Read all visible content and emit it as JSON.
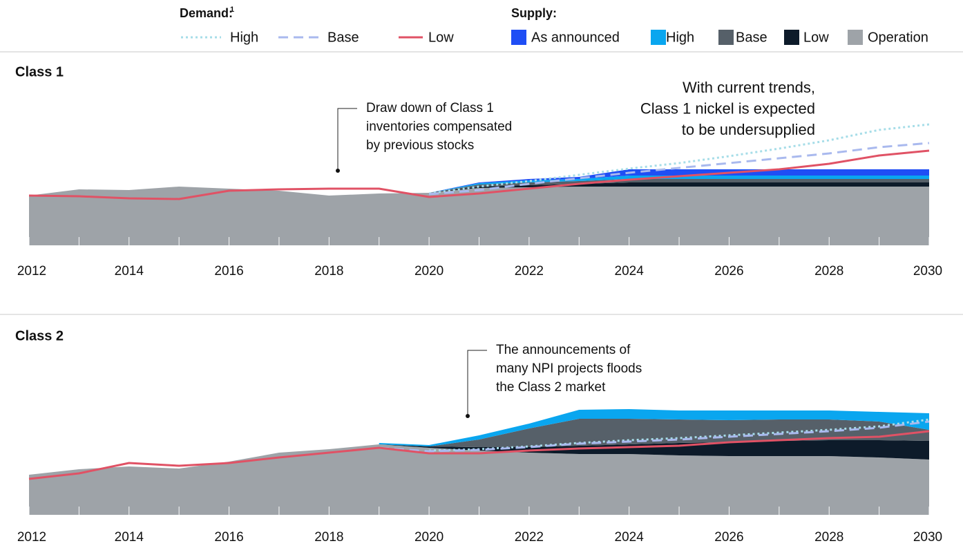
{
  "legend": {
    "demand_title": "Demand:",
    "demand_note": "1",
    "supply_title": "Supply:"
  },
  "chart_data": [
    {
      "type": "area",
      "title": "Class 1",
      "annotations": [
        {
          "lines": [
            "Draw down of Class 1",
            "inventories compensated",
            "by previous stocks"
          ]
        },
        {
          "lines": [
            "With current trends,",
            "Class 1 nickel is expected",
            "to be undersupplied"
          ]
        }
      ],
      "x": [
        2012,
        2013,
        2014,
        2015,
        2016,
        2017,
        2018,
        2019,
        2020,
        2021,
        2022,
        2023,
        2024,
        2025,
        2026,
        2027,
        2028,
        2029,
        2030
      ],
      "xlim": [
        2012,
        2030
      ],
      "xticks": [
        2012,
        2014,
        2016,
        2018,
        2020,
        2022,
        2024,
        2026,
        2028,
        2030
      ],
      "ylim": [
        0,
        220
      ],
      "series": [
        {
          "name": "High",
          "kind": "demand",
          "style": "dotted",
          "color": "#a6dde8",
          "values": [
            null,
            null,
            null,
            null,
            null,
            null,
            null,
            null,
            75,
            85,
            93,
            102,
            111,
            119,
            129,
            140,
            152,
            167,
            175
          ]
        },
        {
          "name": "Base",
          "kind": "demand",
          "style": "dashed",
          "color": "#a9b9ee",
          "values": [
            null,
            null,
            null,
            null,
            null,
            null,
            null,
            null,
            74,
            80,
            89,
            97,
            105,
            112,
            119,
            126,
            133,
            142,
            148
          ]
        },
        {
          "name": "Low",
          "kind": "demand",
          "style": "solid",
          "color": "#e05265",
          "values": [
            72,
            71,
            68,
            67,
            79,
            81,
            82,
            82,
            70,
            75,
            82,
            89,
            95,
            100,
            105,
            110,
            118,
            130,
            137
          ]
        },
        {
          "name": "As announced",
          "kind": "supply",
          "color": "#1f4ef5",
          "values": [
            null,
            null,
            null,
            null,
            null,
            null,
            null,
            null,
            0,
            1,
            2,
            3,
            9,
            9,
            9,
            9,
            9,
            9,
            9
          ]
        },
        {
          "name": "High",
          "kind": "supply",
          "color": "#0aa6ef",
          "values": [
            null,
            null,
            null,
            null,
            null,
            null,
            null,
            null,
            0,
            2,
            3,
            3,
            5,
            5,
            5,
            5,
            5,
            5,
            5
          ]
        },
        {
          "name": "Base",
          "kind": "supply",
          "color": "#566069",
          "values": [
            null,
            null,
            null,
            null,
            null,
            null,
            null,
            null,
            0,
            3,
            4,
            4,
            5,
            5,
            5,
            5,
            5,
            5,
            5
          ]
        },
        {
          "name": "Low",
          "kind": "supply",
          "color": "#0d1b2a",
          "values": [
            null,
            null,
            null,
            null,
            null,
            null,
            null,
            null,
            0,
            2,
            3,
            4,
            6,
            6,
            6,
            6,
            6,
            6,
            6
          ]
        },
        {
          "name": "Operation",
          "kind": "supply",
          "color": "#9ea3a8",
          "values": [
            72,
            81,
            80,
            85,
            82,
            79,
            72,
            75,
            76,
            83,
            84,
            85,
            85,
            85,
            85,
            85,
            85,
            85,
            85
          ]
        }
      ]
    },
    {
      "type": "area",
      "title": "Class 2",
      "annotations": [
        {
          "lines": [
            "The announcements of",
            "many NPI projects floods",
            "the Class 2 market"
          ]
        }
      ],
      "x": [
        2012,
        2013,
        2014,
        2015,
        2016,
        2017,
        2018,
        2019,
        2020,
        2021,
        2022,
        2023,
        2024,
        2025,
        2026,
        2027,
        2028,
        2029,
        2030
      ],
      "xlim": [
        2012,
        2030
      ],
      "xticks": [
        2012,
        2014,
        2016,
        2018,
        2020,
        2022,
        2024,
        2026,
        2028,
        2030
      ],
      "ylim": [
        0,
        220
      ],
      "series": [
        {
          "kind": "demand",
          "style": "dotted",
          "color": "#a6dde8",
          "values": [
            null,
            null,
            null,
            null,
            null,
            null,
            null,
            null,
            93,
            95,
            99,
            104,
            108,
            111,
            115,
            119,
            123,
            128,
            138
          ]
        },
        {
          "kind": "demand",
          "style": "dashed",
          "color": "#a9b9ee",
          "values": [
            null,
            null,
            null,
            null,
            null,
            null,
            null,
            97,
            92,
            94,
            98,
            103,
            106,
            109,
            113,
            117,
            121,
            126,
            135
          ]
        },
        {
          "kind": "demand",
          "style": "solid",
          "color": "#e05265",
          "values": [
            52,
            60,
            75,
            71,
            75,
            83,
            90,
            97,
            89,
            89,
            93,
            96,
            98,
            100,
            105,
            108,
            111,
            113,
            121
          ]
        },
        {
          "kind": "supply",
          "color": "#0aa6ef",
          "values": [
            null,
            null,
            null,
            null,
            null,
            null,
            null,
            2,
            2,
            6,
            7,
            13,
            14,
            13,
            14,
            13,
            13,
            14,
            24
          ]
        },
        {
          "kind": "supply",
          "color": "#566069",
          "values": [
            null,
            null,
            null,
            null,
            null,
            null,
            null,
            0,
            0,
            11,
            27,
            39,
            37,
            34,
            32,
            31,
            30,
            27,
            16
          ]
        },
        {
          "kind": "supply",
          "color": "#0d1b2a",
          "values": [
            null,
            null,
            null,
            null,
            null,
            null,
            null,
            0,
            2,
            5,
            8,
            12,
            14,
            18,
            20,
            22,
            23,
            25,
            27
          ]
        },
        {
          "kind": "supply",
          "color": "#9ea3a8",
          "values": [
            58,
            66,
            70,
            67,
            77,
            90,
            95,
            102,
            97,
            93,
            90,
            88,
            88,
            86,
            85,
            85,
            85,
            83,
            80
          ]
        }
      ]
    }
  ]
}
